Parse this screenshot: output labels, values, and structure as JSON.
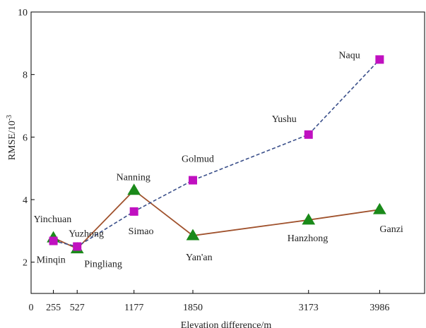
{
  "chart_data": {
    "type": "line",
    "title": "",
    "xlabel": "Elevation difference/m",
    "ylabel_main": "RMSE/10",
    "ylabel_exp": "-3",
    "xlim": [
      0,
      4500
    ],
    "ylim": [
      1,
      10
    ],
    "x_ticks": [
      0,
      255,
      527,
      1177,
      1850,
      3173,
      3986
    ],
    "x_tick_labels": [
      "0",
      "255",
      "527",
      "1177",
      "1850",
      "3173",
      "3986"
    ],
    "y_ticks": [
      2,
      4,
      6,
      8,
      10
    ],
    "y_tick_labels": [
      "2",
      "4",
      "6",
      "8",
      "10"
    ],
    "grid": false,
    "series": [
      {
        "marker": "triangle",
        "line_style": "solid",
        "line_color": "#a0522d",
        "marker_color": "#1a8a1a",
        "points": [
          {
            "x": 255,
            "y": 2.78,
            "label": "Yinchuan"
          },
          {
            "x": 527,
            "y": 2.43,
            "label": "Pingliang"
          },
          {
            "x": 1177,
            "y": 4.3,
            "label": "Nanning"
          },
          {
            "x": 1850,
            "y": 2.85,
            "label": "Yan'an"
          },
          {
            "x": 3173,
            "y": 3.35,
            "label": "Hanzhong"
          },
          {
            "x": 3986,
            "y": 3.68,
            "label": "Ganzi"
          }
        ]
      },
      {
        "marker": "square",
        "line_style": "dashed",
        "line_color": "#3a4f8a",
        "marker_color": "#c010c0",
        "points": [
          {
            "x": 255,
            "y": 2.68,
            "label": "Minqin"
          },
          {
            "x": 527,
            "y": 2.5,
            "label": "Yuzhong"
          },
          {
            "x": 1177,
            "y": 3.62,
            "label": "Simao"
          },
          {
            "x": 1850,
            "y": 4.62,
            "label": "Golmud"
          },
          {
            "x": 3173,
            "y": 6.08,
            "label": "Yushu"
          },
          {
            "x": 3986,
            "y": 8.48,
            "label": "Naqu"
          }
        ]
      }
    ]
  }
}
